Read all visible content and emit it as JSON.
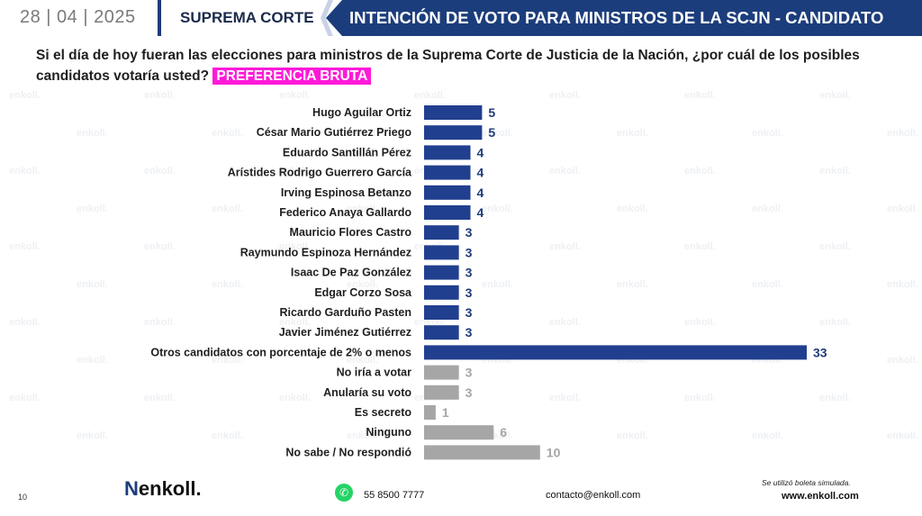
{
  "header": {
    "date": "28 | 04 | 2025",
    "section": "SUPREMA CORTE",
    "title": "INTENCIÓN DE VOTO PARA MINISTROS DE LA SCJN - CANDIDATO"
  },
  "question": {
    "text": "Si el día de hoy fueran las elecciones para ministros de la Suprema Corte de Justicia de la Nación, ¿por cuál de los posibles candidatos votaría usted?",
    "tag": "PREFERENCIA BRUTA"
  },
  "watermark": {
    "text": "enkoll."
  },
  "colors": {
    "blue": "#213f8f",
    "gray": "#a6a6a6",
    "label_blue": "#1f3b7a",
    "label_gray": "#a6a6a6",
    "tag": "#ff19d8"
  },
  "chart_data": {
    "type": "bar",
    "orientation": "horizontal",
    "categories": [
      "Hugo Aguilar Ortiz",
      "César Mario Gutiérrez Priego",
      "Eduardo Santillán Pérez",
      "Arístides Rodrigo Guerrero García",
      "Irving Espinosa Betanzo",
      "Federico Anaya Gallardo",
      "Mauricio Flores Castro",
      "Raymundo Espinoza Hernández",
      "Isaac De Paz González",
      "Edgar Corzo Sosa",
      "Ricardo Garduño Pasten",
      "Javier Jiménez Gutiérrez",
      "Otros candidatos con porcentaje de 2% o menos",
      "No iría a votar",
      "Anularía su voto",
      "Es secreto",
      "Ninguno",
      "No sabe / No respondió"
    ],
    "values": [
      5,
      5,
      4,
      4,
      4,
      4,
      3,
      3,
      3,
      3,
      3,
      3,
      33,
      3,
      3,
      1,
      6,
      10
    ],
    "groups": [
      "blue",
      "blue",
      "blue",
      "blue",
      "blue",
      "blue",
      "blue",
      "blue",
      "blue",
      "blue",
      "blue",
      "blue",
      "blue",
      "gray",
      "gray",
      "gray",
      "gray",
      "gray"
    ],
    "xlim": [
      0,
      33
    ],
    "grid": false
  },
  "footer": {
    "page": "10",
    "logo": "enkoll.",
    "phone": "55 8500 7777",
    "email": "contacto@enkoll.com",
    "note": "Se utilizó boleta simulada.",
    "web": "www.enkoll.com"
  }
}
